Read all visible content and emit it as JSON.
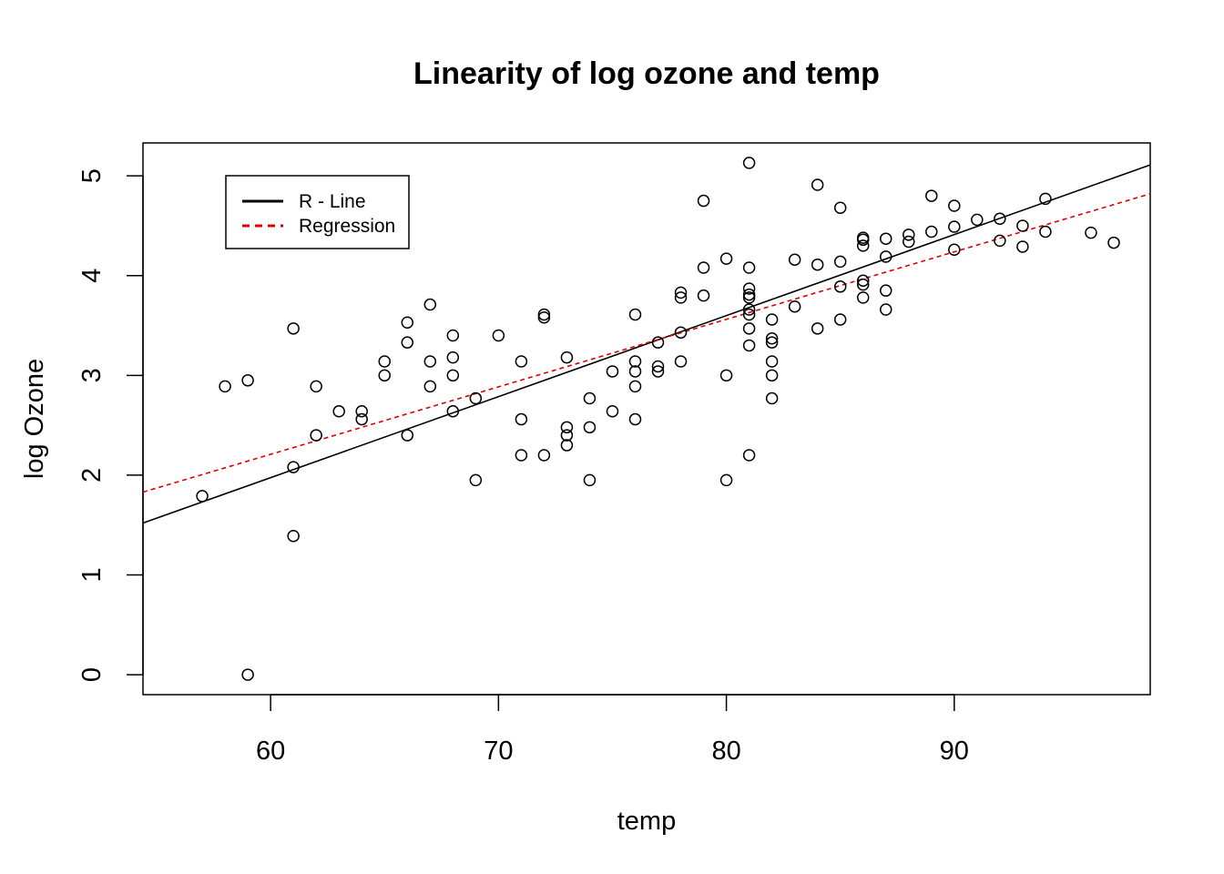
{
  "chart_data": {
    "type": "scatter",
    "title": "Linearity of log ozone and temp",
    "xlabel": "temp",
    "ylabel": "log Ozone",
    "xlim": [
      54.4,
      98.6
    ],
    "ylim": [
      -0.2,
      5.33
    ],
    "x_ticks": [
      "60",
      "70",
      "80",
      "90"
    ],
    "y_ticks": [
      "0",
      "1",
      "2",
      "3",
      "4",
      "5"
    ],
    "grid": false,
    "legend_position": "top-left",
    "points": [
      [
        57,
        1.79
      ],
      [
        58,
        2.89
      ],
      [
        59,
        2.95
      ],
      [
        59,
        0.0
      ],
      [
        61,
        3.47
      ],
      [
        61,
        2.08
      ],
      [
        61,
        1.39
      ],
      [
        62,
        2.89
      ],
      [
        62,
        2.4
      ],
      [
        63,
        2.64
      ],
      [
        64,
        2.64
      ],
      [
        64,
        2.56
      ],
      [
        65,
        3.14
      ],
      [
        65,
        3.0
      ],
      [
        66,
        3.53
      ],
      [
        66,
        3.33
      ],
      [
        66,
        2.4
      ],
      [
        67,
        3.71
      ],
      [
        67,
        3.14
      ],
      [
        67,
        2.89
      ],
      [
        68,
        3.4
      ],
      [
        68,
        3.18
      ],
      [
        68,
        3.0
      ],
      [
        68,
        2.64
      ],
      [
        69,
        2.77
      ],
      [
        69,
        1.95
      ],
      [
        70,
        3.4
      ],
      [
        71,
        3.14
      ],
      [
        71,
        2.56
      ],
      [
        71,
        2.2
      ],
      [
        72,
        3.61
      ],
      [
        72,
        3.58
      ],
      [
        72,
        2.2
      ],
      [
        73,
        3.18
      ],
      [
        73,
        2.48
      ],
      [
        73,
        2.4
      ],
      [
        73,
        2.3
      ],
      [
        74,
        2.77
      ],
      [
        74,
        2.48
      ],
      [
        74,
        1.95
      ],
      [
        75,
        3.04
      ],
      [
        75,
        2.64
      ],
      [
        76,
        3.61
      ],
      [
        76,
        3.14
      ],
      [
        76,
        3.04
      ],
      [
        76,
        2.89
      ],
      [
        76,
        2.56
      ],
      [
        77,
        3.33
      ],
      [
        77,
        3.09
      ],
      [
        77,
        3.04
      ],
      [
        78,
        3.83
      ],
      [
        78,
        3.78
      ],
      [
        78,
        3.43
      ],
      [
        78,
        3.14
      ],
      [
        79,
        4.75
      ],
      [
        79,
        4.08
      ],
      [
        79,
        3.8
      ],
      [
        80,
        4.17
      ],
      [
        80,
        3.0
      ],
      [
        80,
        1.95
      ],
      [
        81,
        5.13
      ],
      [
        81,
        4.08
      ],
      [
        81,
        3.87
      ],
      [
        81,
        3.81
      ],
      [
        81,
        3.78
      ],
      [
        81,
        3.66
      ],
      [
        81,
        3.61
      ],
      [
        81,
        3.47
      ],
      [
        81,
        3.3
      ],
      [
        81,
        2.2
      ],
      [
        82,
        3.56
      ],
      [
        82,
        3.37
      ],
      [
        82,
        3.33
      ],
      [
        82,
        3.14
      ],
      [
        82,
        3.0
      ],
      [
        82,
        2.77
      ],
      [
        83,
        4.16
      ],
      [
        83,
        3.69
      ],
      [
        84,
        4.91
      ],
      [
        84,
        4.11
      ],
      [
        84,
        3.47
      ],
      [
        85,
        4.68
      ],
      [
        85,
        4.14
      ],
      [
        85,
        3.89
      ],
      [
        85,
        3.56
      ],
      [
        86,
        4.38
      ],
      [
        86,
        4.36
      ],
      [
        86,
        4.3
      ],
      [
        86,
        3.95
      ],
      [
        86,
        3.91
      ],
      [
        86,
        3.78
      ],
      [
        87,
        4.37
      ],
      [
        87,
        4.19
      ],
      [
        87,
        3.85
      ],
      [
        87,
        3.66
      ],
      [
        88,
        4.41
      ],
      [
        88,
        4.34
      ],
      [
        89,
        4.8
      ],
      [
        89,
        4.44
      ],
      [
        90,
        4.7
      ],
      [
        90,
        4.49
      ],
      [
        90,
        4.26
      ],
      [
        91,
        4.56
      ],
      [
        92,
        4.57
      ],
      [
        92,
        4.35
      ],
      [
        93,
        4.5
      ],
      [
        93,
        4.29
      ],
      [
        94,
        4.77
      ],
      [
        94,
        4.44
      ],
      [
        96,
        4.43
      ],
      [
        97,
        4.33
      ]
    ],
    "series": [
      {
        "name": "R - Line",
        "type": "line",
        "color": "#000000",
        "style": "solid",
        "x": [
          54.4,
          98.6
        ],
        "y": [
          1.52,
          5.11
        ]
      },
      {
        "name": "Regression",
        "type": "line",
        "color": "#dd0000",
        "style": "dashed",
        "x": [
          54.4,
          98.6
        ],
        "y": [
          1.83,
          4.82
        ]
      }
    ]
  }
}
